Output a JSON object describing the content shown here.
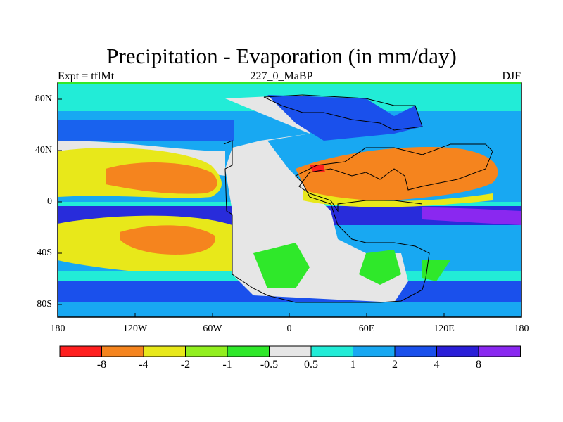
{
  "title": "Precipitation - Evaporation (in mm/day)",
  "subtitle_left": "Expt = tflMt",
  "subtitle_center": "227_0_MaBP",
  "subtitle_right": "DJF",
  "y_ticks": [
    "80N",
    "40N",
    "0",
    "40S",
    "80S"
  ],
  "x_ticks": [
    "180",
    "120W",
    "60W",
    "0",
    "60E",
    "120E",
    "180"
  ],
  "colorbar": {
    "colors": [
      "#ff1f1f",
      "#f5841e",
      "#e8e81a",
      "#92ef1f",
      "#2fe82a",
      "#e6e6e6",
      "#22ecd7",
      "#18a8f2",
      "#1a50ec",
      "#2a1ed8",
      "#8a28f0"
    ],
    "labels": [
      "-8",
      "-4",
      "-2",
      "-1",
      "-0.5",
      "0.5",
      "1",
      "2",
      "4",
      "8"
    ]
  }
}
